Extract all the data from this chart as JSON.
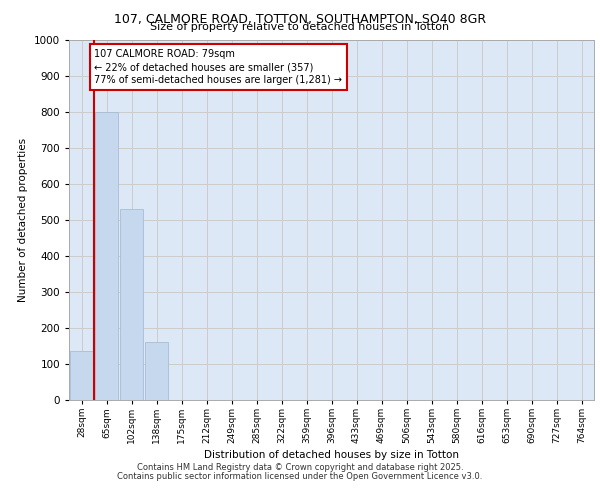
{
  "title1": "107, CALMORE ROAD, TOTTON, SOUTHAMPTON, SO40 8GR",
  "title2": "Size of property relative to detached houses in Totton",
  "xlabel": "Distribution of detached houses by size in Totton",
  "ylabel": "Number of detached properties",
  "categories": [
    "28sqm",
    "65sqm",
    "102sqm",
    "138sqm",
    "175sqm",
    "212sqm",
    "249sqm",
    "285sqm",
    "322sqm",
    "359sqm",
    "396sqm",
    "433sqm",
    "469sqm",
    "506sqm",
    "543sqm",
    "580sqm",
    "616sqm",
    "653sqm",
    "690sqm",
    "727sqm",
    "764sqm"
  ],
  "values": [
    135,
    800,
    530,
    160,
    0,
    0,
    0,
    0,
    0,
    0,
    0,
    0,
    0,
    0,
    0,
    0,
    0,
    0,
    0,
    0,
    0
  ],
  "bar_color": "#c5d8ed",
  "bar_edge_color": "#a0b8d0",
  "vline_x": 0.5,
  "vline_color": "#cc0000",
  "annotation_text": "107 CALMORE ROAD: 79sqm\n← 22% of detached houses are smaller (357)\n77% of semi-detached houses are larger (1,281) →",
  "annotation_box_color": "#ffffff",
  "annotation_box_edge": "#cc0000",
  "ylim": [
    0,
    1000
  ],
  "yticks": [
    0,
    100,
    200,
    300,
    400,
    500,
    600,
    700,
    800,
    900,
    1000
  ],
  "grid_color": "#cccccc",
  "background_color": "#dce8f5",
  "footer1": "Contains HM Land Registry data © Crown copyright and database right 2025.",
  "footer2": "Contains public sector information licensed under the Open Government Licence v3.0."
}
